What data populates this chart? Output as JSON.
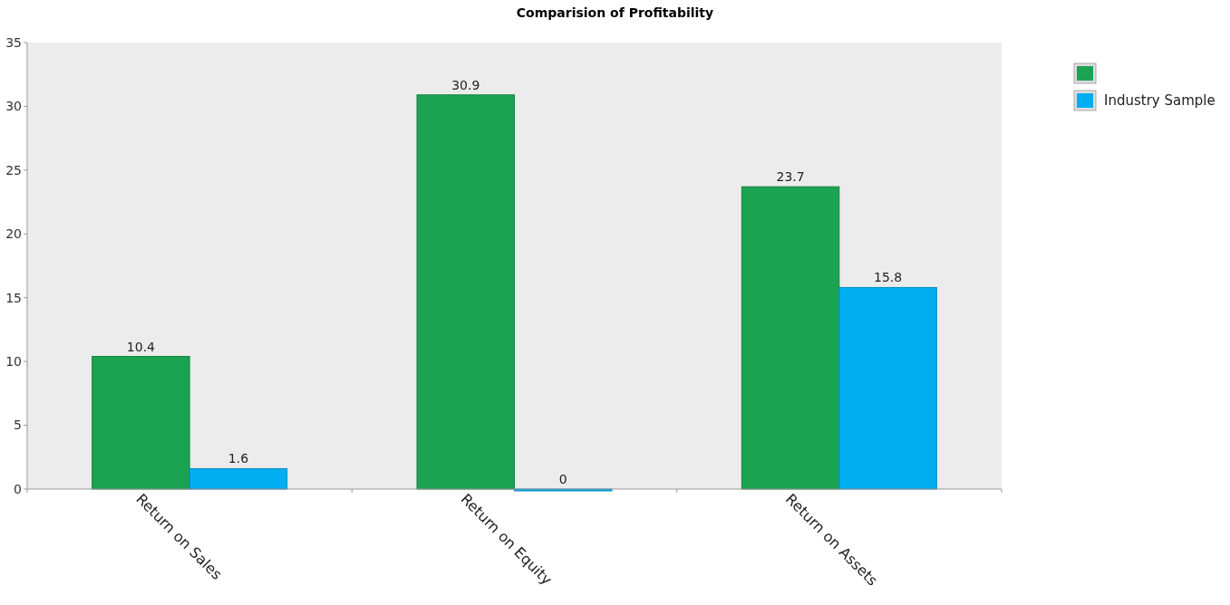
{
  "chart_data": {
    "type": "bar",
    "title": "Comparision of Profitability",
    "categories": [
      "Return on Sales",
      "Return on Equity",
      "Return on Assets"
    ],
    "series": [
      {
        "color": "#1ca352",
        "values": [
          10.4,
          30.9,
          23.7
        ]
      },
      {
        "name": "Industry Sample",
        "color": "#00aeef",
        "values": [
          1.6,
          0,
          15.8
        ]
      }
    ],
    "ylim": [
      0,
      35
    ],
    "yticks": [
      0,
      5,
      10,
      15,
      20,
      25,
      30,
      35
    ],
    "grid": false,
    "legend": "top right",
    "data_labels": true
  }
}
